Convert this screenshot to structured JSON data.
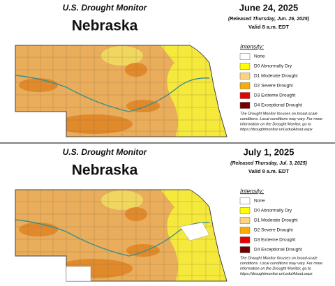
{
  "panels": [
    {
      "header": {
        "title": "U.S. Drought Monitor",
        "state": "Nebraska",
        "date": "June 24, 2025",
        "released": "(Released Thursday, Jun. 26, 2025)",
        "valid": "Valid 8 a.m. EDT"
      },
      "legend": {
        "title": "Intensity:",
        "items": [
          {
            "label": "None",
            "color": "#ffffff"
          },
          {
            "label": "D0 Abnormally Dry",
            "color": "#ffff00"
          },
          {
            "label": "D1 Moderate Drought",
            "color": "#fcd37f"
          },
          {
            "label": "D2 Severe Drought",
            "color": "#ffaa00"
          },
          {
            "label": "D3 Extreme Drought",
            "color": "#e60000"
          },
          {
            "label": "D4 Exceptional Drought",
            "color": "#730000"
          }
        ]
      },
      "note": [
        "The Drought Monitor focuses on broad-scale",
        "conditions. Local conditions may vary. For more",
        "information on the Drought Monitor, go to",
        "https://droughtmonitor.unl.edu/About.aspx"
      ]
    },
    {
      "header": {
        "title": "U.S. Drought Monitor",
        "state": "Nebraska",
        "date": "July 1, 2025",
        "released": "(Released Thursday, Jul. 3, 2025)",
        "valid": "Valid 8 a.m. EDT"
      },
      "legend": {
        "title": "Intensity:",
        "items": [
          {
            "label": "None",
            "color": "#ffffff"
          },
          {
            "label": "D0 Abnormally Dry",
            "color": "#ffff00"
          },
          {
            "label": "D1 Moderate Drought",
            "color": "#fcd37f"
          },
          {
            "label": "D2 Severe Drought",
            "color": "#ffaa00"
          },
          {
            "label": "D3 Extreme Drought",
            "color": "#e60000"
          },
          {
            "label": "D4 Exceptional Drought",
            "color": "#730000"
          }
        ]
      },
      "note": [
        "The Drought Monitor focuses on broad-scale",
        "conditions. Local conditions may vary. For more",
        "information on the Drought Monitor, go to",
        "https://droughtmonitor.unl.edu/About.aspx"
      ]
    }
  ]
}
